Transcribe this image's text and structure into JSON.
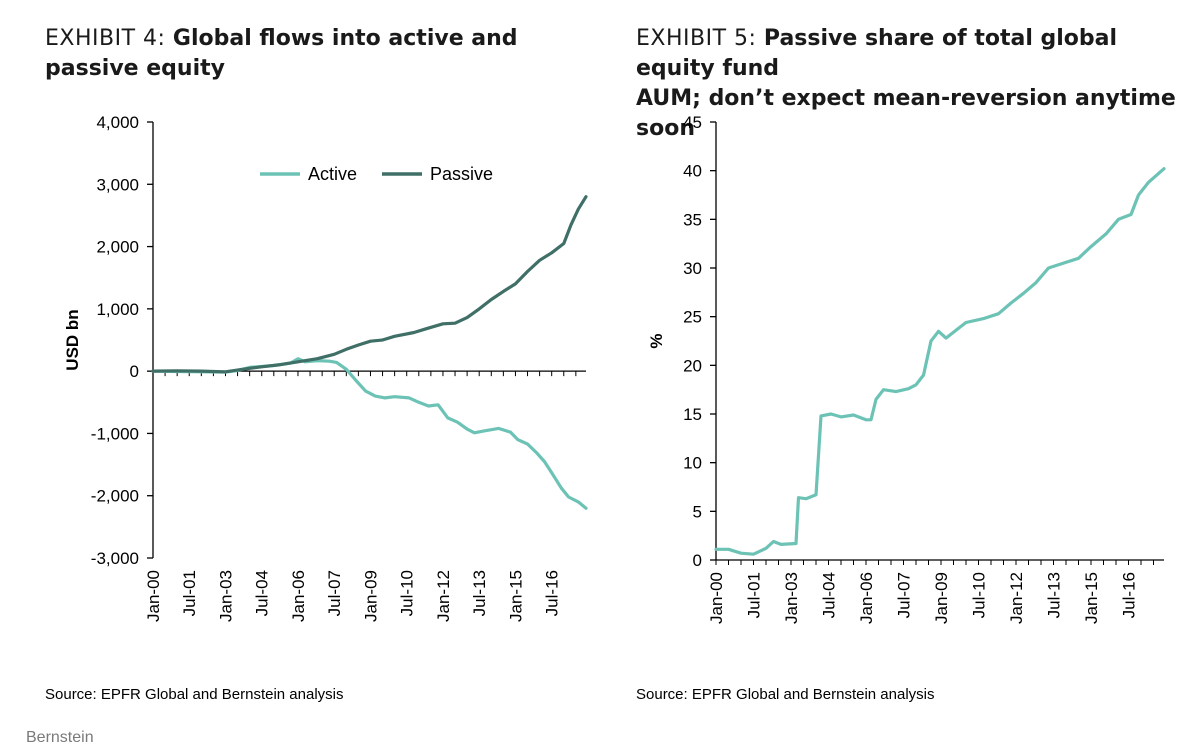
{
  "colors": {
    "active": "#6cc3b5",
    "passive": "#3f6f66",
    "axis": "#000000"
  },
  "exhibit4": {
    "prefix": "EXHIBIT 4: ",
    "title": "Global flows into active and passive equity",
    "source": "Source: EPFR Global and Bernstein analysis"
  },
  "exhibit5": {
    "prefix": "EXHIBIT 5: ",
    "title_line1": "Passive share of total global equity fund",
    "title_line2": "AUM; don’t expect mean-reversion anytime soon",
    "source": "Source: EPFR Global and Bernstein analysis"
  },
  "brand": "Bernstein",
  "chart_data": [
    {
      "type": "line",
      "title": "Global flows into active and passive equity",
      "ylabel": "USD bn",
      "ylim": [
        -3000,
        4000
      ],
      "yticks": [
        4000,
        3000,
        2000,
        1000,
        0,
        -1000,
        -2000,
        -3000
      ],
      "ytick_labels": [
        "4,000",
        "3,000",
        "2,000",
        "1,000",
        "0",
        "-1,000",
        "-2,000",
        "-3,000"
      ],
      "xlim": [
        2000.0,
        2017.92
      ],
      "xticks": [
        2000.0,
        2001.5,
        2003.0,
        2004.5,
        2006.0,
        2007.5,
        2009.0,
        2010.5,
        2012.0,
        2013.5,
        2015.0,
        2016.5
      ],
      "xtick_labels": [
        "Jan-00",
        "Jul-01",
        "Jan-03",
        "Jul-04",
        "Jan-06",
        "Jul-07",
        "Jan-09",
        "Jul-10",
        "Jan-12",
        "Jul-13",
        "Jan-15",
        "Jul-16"
      ],
      "legend_position": "top-center",
      "series": [
        {
          "name": "Active",
          "color_key": "active",
          "points": [
            [
              2000.0,
              0
            ],
            [
              2001.0,
              -5
            ],
            [
              2002.0,
              -10
            ],
            [
              2003.0,
              -15
            ],
            [
              2003.5,
              10
            ],
            [
              2004.0,
              60
            ],
            [
              2005.0,
              90
            ],
            [
              2005.7,
              130
            ],
            [
              2006.0,
              200
            ],
            [
              2006.3,
              150
            ],
            [
              2006.8,
              170
            ],
            [
              2007.3,
              160
            ],
            [
              2007.6,
              140
            ],
            [
              2008.0,
              30
            ],
            [
              2008.4,
              -150
            ],
            [
              2008.8,
              -320
            ],
            [
              2009.2,
              -400
            ],
            [
              2009.6,
              -430
            ],
            [
              2010.0,
              -410
            ],
            [
              2010.6,
              -430
            ],
            [
              2011.0,
              -500
            ],
            [
              2011.4,
              -560
            ],
            [
              2011.8,
              -540
            ],
            [
              2012.2,
              -750
            ],
            [
              2012.6,
              -820
            ],
            [
              2013.0,
              -930
            ],
            [
              2013.3,
              -990
            ],
            [
              2013.7,
              -960
            ],
            [
              2014.0,
              -940
            ],
            [
              2014.3,
              -920
            ],
            [
              2014.8,
              -980
            ],
            [
              2015.1,
              -1100
            ],
            [
              2015.5,
              -1170
            ],
            [
              2015.9,
              -1320
            ],
            [
              2016.2,
              -1450
            ],
            [
              2016.5,
              -1630
            ],
            [
              2016.9,
              -1880
            ],
            [
              2017.2,
              -2020
            ],
            [
              2017.6,
              -2100
            ],
            [
              2017.92,
              -2200
            ]
          ]
        },
        {
          "name": "Passive",
          "color_key": "passive",
          "points": [
            [
              2000.0,
              0
            ],
            [
              2001.0,
              5
            ],
            [
              2002.0,
              0
            ],
            [
              2003.0,
              -10
            ],
            [
              2003.7,
              30
            ],
            [
              2004.5,
              70
            ],
            [
              2005.2,
              100
            ],
            [
              2006.0,
              150
            ],
            [
              2006.8,
              200
            ],
            [
              2007.5,
              270
            ],
            [
              2008.0,
              350
            ],
            [
              2008.5,
              420
            ],
            [
              2009.0,
              480
            ],
            [
              2009.5,
              500
            ],
            [
              2010.0,
              560
            ],
            [
              2010.8,
              620
            ],
            [
              2011.3,
              680
            ],
            [
              2012.0,
              760
            ],
            [
              2012.5,
              770
            ],
            [
              2013.0,
              860
            ],
            [
              2013.5,
              1000
            ],
            [
              2014.0,
              1150
            ],
            [
              2014.5,
              1280
            ],
            [
              2015.0,
              1400
            ],
            [
              2015.5,
              1600
            ],
            [
              2016.0,
              1780
            ],
            [
              2016.5,
              1900
            ],
            [
              2017.0,
              2050
            ],
            [
              2017.3,
              2350
            ],
            [
              2017.6,
              2600
            ],
            [
              2017.92,
              2800
            ]
          ]
        }
      ]
    },
    {
      "type": "line",
      "title": "Passive share of total global equity fund AUM; don’t expect mean-reversion anytime soon",
      "ylabel": "%",
      "ylim": [
        0,
        45
      ],
      "yticks": [
        45,
        40,
        35,
        30,
        25,
        20,
        15,
        10,
        5,
        0
      ],
      "ytick_labels": [
        "45",
        "40",
        "35",
        "30",
        "25",
        "20",
        "15",
        "10",
        "5",
        "0"
      ],
      "xlim": [
        2000.0,
        2017.92
      ],
      "xticks": [
        2000.0,
        2001.5,
        2003.0,
        2004.5,
        2006.0,
        2007.5,
        2009.0,
        2010.5,
        2012.0,
        2013.5,
        2015.0,
        2016.5
      ],
      "xtick_labels": [
        "Jan-00",
        "Jul-01",
        "Jan-03",
        "Jul-04",
        "Jan-06",
        "Jul-07",
        "Jan-09",
        "Jul-10",
        "Jan-12",
        "Jul-13",
        "Jan-15",
        "Jul-16"
      ],
      "series": [
        {
          "name": "",
          "color_key": "active",
          "points": [
            [
              2000.0,
              1.1
            ],
            [
              2000.5,
              1.1
            ],
            [
              2001.0,
              0.7
            ],
            [
              2001.5,
              0.6
            ],
            [
              2002.0,
              1.2
            ],
            [
              2002.3,
              1.9
            ],
            [
              2002.6,
              1.6
            ],
            [
              2003.2,
              1.7
            ],
            [
              2003.3,
              6.4
            ],
            [
              2003.6,
              6.3
            ],
            [
              2004.0,
              6.7
            ],
            [
              2004.2,
              14.8
            ],
            [
              2004.6,
              15.0
            ],
            [
              2005.0,
              14.7
            ],
            [
              2005.5,
              14.9
            ],
            [
              2006.0,
              14.4
            ],
            [
              2006.2,
              14.4
            ],
            [
              2006.4,
              16.5
            ],
            [
              2006.7,
              17.5
            ],
            [
              2007.2,
              17.3
            ],
            [
              2007.7,
              17.6
            ],
            [
              2008.0,
              18.0
            ],
            [
              2008.3,
              19.0
            ],
            [
              2008.6,
              22.5
            ],
            [
              2008.9,
              23.5
            ],
            [
              2009.2,
              22.8
            ],
            [
              2009.6,
              23.6
            ],
            [
              2010.0,
              24.4
            ],
            [
              2010.7,
              24.8
            ],
            [
              2011.3,
              25.3
            ],
            [
              2011.8,
              26.4
            ],
            [
              2012.3,
              27.4
            ],
            [
              2012.8,
              28.5
            ],
            [
              2013.3,
              30.0
            ],
            [
              2013.9,
              30.5
            ],
            [
              2014.5,
              31.0
            ],
            [
              2015.0,
              32.2
            ],
            [
              2015.6,
              33.5
            ],
            [
              2016.1,
              35.0
            ],
            [
              2016.6,
              35.5
            ],
            [
              2016.9,
              37.5
            ],
            [
              2017.3,
              38.8
            ],
            [
              2017.92,
              40.2
            ]
          ]
        }
      ]
    }
  ]
}
